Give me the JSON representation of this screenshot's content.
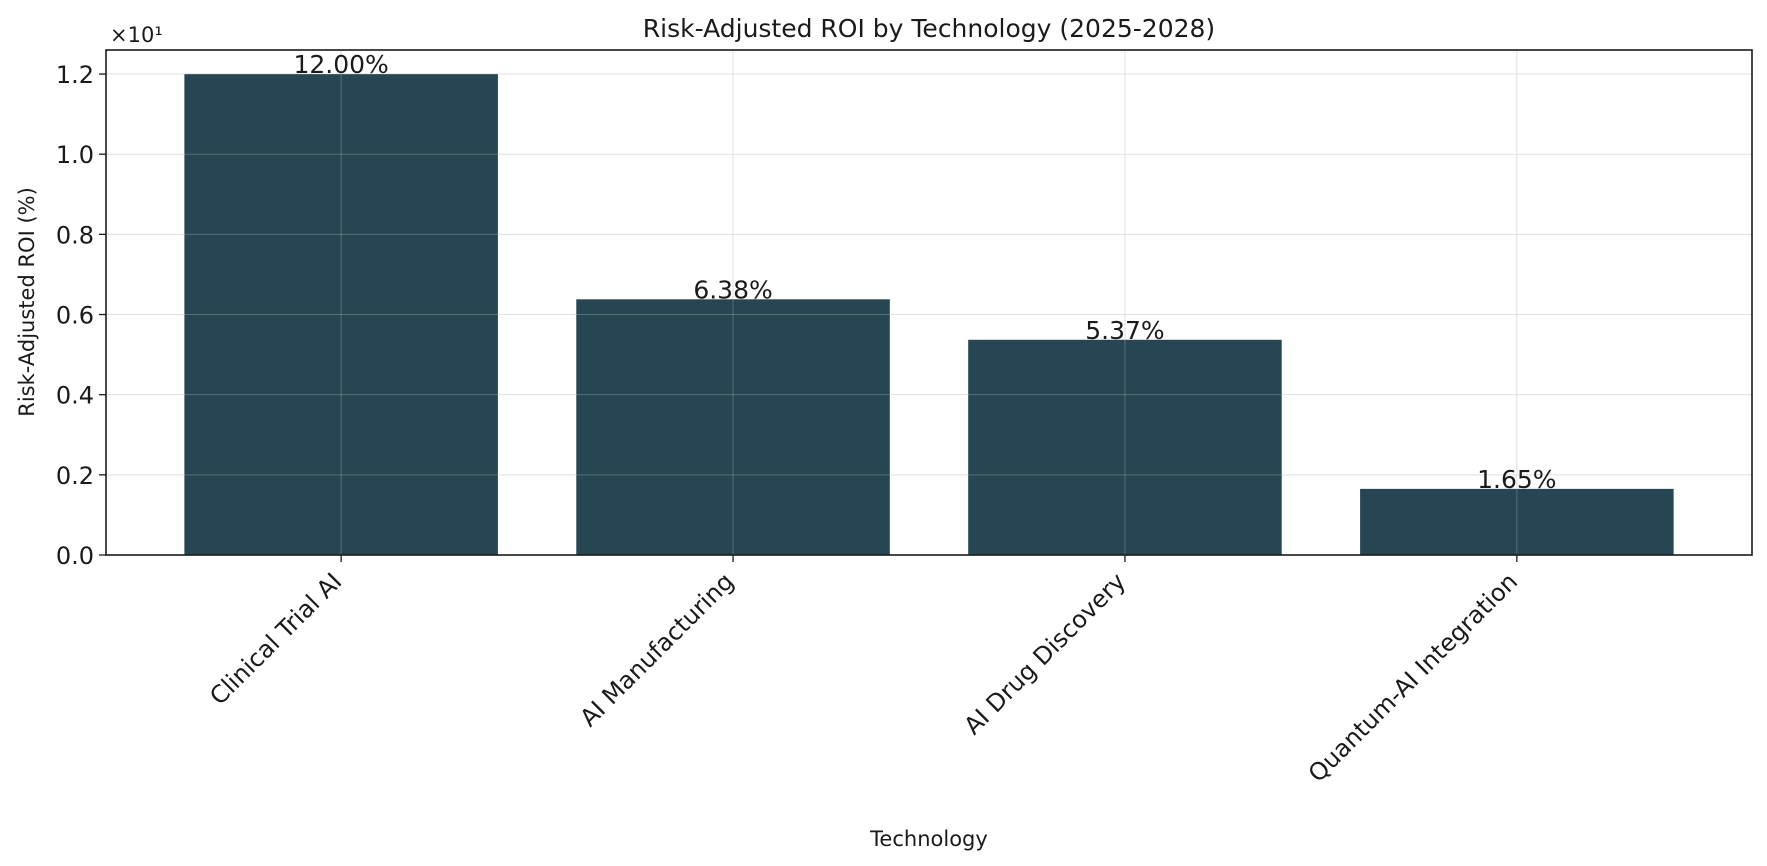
{
  "chart_data": {
    "type": "bar",
    "title": "Risk-Adjusted ROI by Technology (2025-2028)",
    "xlabel": "Technology",
    "ylabel": "Risk-Adjusted ROI (%)",
    "y_multiplier_label": "×10¹",
    "categories": [
      "Clinical Trial AI",
      "AI Manufacturing",
      "AI Drug Discovery",
      "Quantum-AI Integration"
    ],
    "values": [
      12.0,
      6.38,
      5.37,
      1.65
    ],
    "value_labels": [
      "12.00%",
      "6.38%",
      "5.37%",
      "1.65%"
    ],
    "y_tick_labels": [
      "0.0",
      "0.2",
      "0.4",
      "0.6",
      "0.8",
      "1.0",
      "1.2"
    ],
    "y_tick_values": [
      0,
      2,
      4,
      6,
      8,
      10,
      12
    ],
    "ylim": [
      0,
      12.6
    ],
    "grid": true,
    "bar_color": "#264653"
  }
}
